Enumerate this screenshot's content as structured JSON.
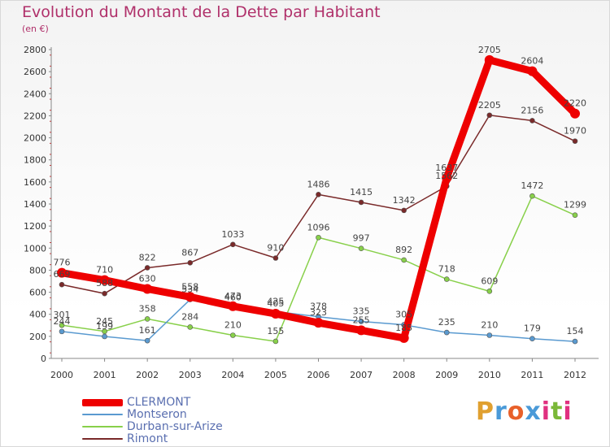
{
  "title": "Evolution du Montant de la Dette par Habitant",
  "subtitle": "(en €)",
  "brand": {
    "text": "Proxiti",
    "colors": [
      "#e0a030",
      "#4a9ad8",
      "#e8602a",
      "#4a9ad8",
      "#e03080",
      "#7ab838",
      "#e03080"
    ]
  },
  "chart_data": {
    "type": "line",
    "x": [
      2000,
      2001,
      2002,
      2003,
      2004,
      2005,
      2006,
      2007,
      2008,
      2009,
      2010,
      2011,
      2012
    ],
    "ylim": [
      0,
      2800
    ],
    "yticks": [
      0,
      200,
      400,
      600,
      800,
      1000,
      1200,
      1400,
      1600,
      1800,
      2000,
      2200,
      2400,
      2600,
      2800
    ],
    "grid": false,
    "legend_position": "bottom-left",
    "series": [
      {
        "name": "Rimont",
        "color": "#7a2a2a",
        "values": [
          669,
          588,
          822,
          867,
          1033,
          910,
          1486,
          1415,
          1342,
          1562,
          2205,
          2156,
          1970
        ],
        "labels": [
          "669",
          "588",
          "822",
          "867",
          "1033",
          "910",
          "1486",
          "1415",
          "1342",
          "1562",
          "2205",
          "2156",
          "1970"
        ]
      },
      {
        "name": "Durban-sur-Arize",
        "color": "#88d04a",
        "values": [
          301,
          245,
          358,
          284,
          210,
          155,
          1096,
          997,
          892,
          718,
          609,
          1472,
          1299
        ],
        "labels": [
          "301",
          "245",
          "358",
          "284",
          "210",
          "155",
          "1096",
          "997",
          "892",
          "718",
          "609",
          "1472",
          "1299"
        ]
      },
      {
        "name": "Montseron",
        "color": "#5a9ad0",
        "values": [
          244,
          199,
          161,
          534,
          460,
          425,
          378,
          335,
          305,
          235,
          210,
          179,
          154
        ],
        "labels": [
          "244",
          "199",
          "161",
          "534",
          "460",
          "425",
          "378",
          "335",
          "305",
          "235",
          "210",
          "179",
          "154"
        ]
      },
      {
        "name": "CLERMONT",
        "color": "#ee0000",
        "values": [
          776,
          710,
          630,
          558,
          473,
          405,
          323,
          255,
          185,
          1637,
          2705,
          2604,
          2220
        ],
        "labels": [
          "776",
          "710",
          "630",
          "558",
          "473",
          "405",
          "323",
          "255",
          "185",
          "1637",
          "2705",
          "2604",
          "2220"
        ]
      }
    ],
    "legend": [
      {
        "name": "CLERMONT",
        "color": "#ee0000"
      },
      {
        "name": "Montseron",
        "color": "#5a9ad0"
      },
      {
        "name": "Durban-sur-Arize",
        "color": "#88d04a"
      },
      {
        "name": "Rimont",
        "color": "#7a2a2a"
      }
    ]
  }
}
